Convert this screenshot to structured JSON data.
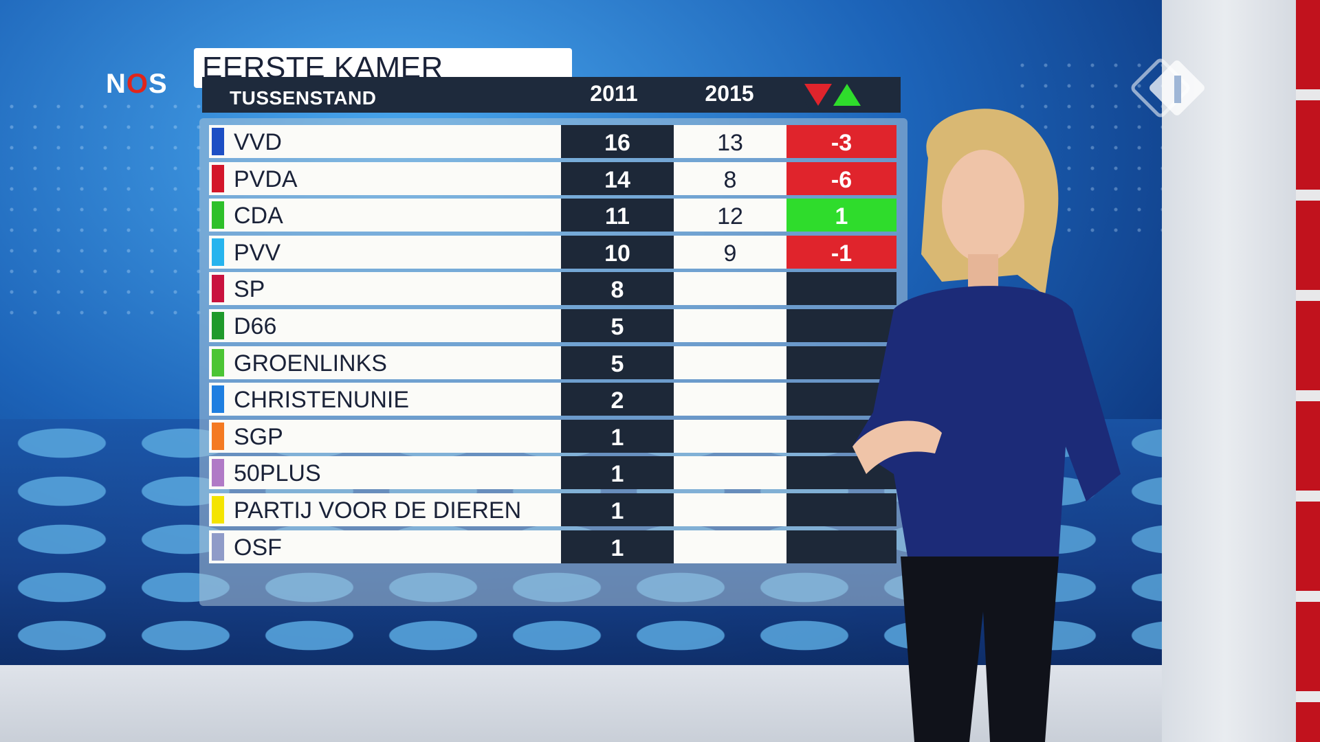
{
  "broadcaster": {
    "logo_text_before": "N",
    "logo_text_o": "O",
    "logo_text_after": "S"
  },
  "graphic": {
    "title": "EERSTE KAMER",
    "subtitle": "TUSSENSTAND",
    "columns": {
      "year_a": "2011",
      "year_b": "2015"
    },
    "change_colors": {
      "down": "#e0242c",
      "up": "#2fdc2c"
    }
  },
  "chart_data": {
    "type": "table",
    "title": "EERSTE KAMER",
    "subtitle": "TUSSENSTAND",
    "columns": [
      "2011",
      "2015"
    ],
    "rows": [
      {
        "party": "VVD",
        "color": "#1d4fc4",
        "seats_2011": "16",
        "seats_2015": "13",
        "change": "-3",
        "trend": "neg"
      },
      {
        "party": "PVDA",
        "color": "#d3162a",
        "seats_2011": "14",
        "seats_2015": "8",
        "change": "-6",
        "trend": "neg"
      },
      {
        "party": "CDA",
        "color": "#2ec02a",
        "seats_2011": "11",
        "seats_2015": "12",
        "change": "1",
        "trend": "pos"
      },
      {
        "party": "PVV",
        "color": "#27b4ee",
        "seats_2011": "10",
        "seats_2015": "9",
        "change": "-1",
        "trend": "neg"
      },
      {
        "party": "SP",
        "color": "#c9123e",
        "seats_2011": "8",
        "seats_2015": "",
        "change": "",
        "trend": "none"
      },
      {
        "party": "D66",
        "color": "#1f9a2b",
        "seats_2011": "5",
        "seats_2015": "",
        "change": "",
        "trend": "none"
      },
      {
        "party": "GROENLINKS",
        "color": "#4cc534",
        "seats_2011": "5",
        "seats_2015": "",
        "change": "",
        "trend": "none"
      },
      {
        "party": "CHRISTENUNIE",
        "color": "#1f7fe0",
        "seats_2011": "2",
        "seats_2015": "",
        "change": "",
        "trend": "none"
      },
      {
        "party": "SGP",
        "color": "#f47a22",
        "seats_2011": "1",
        "seats_2015": "",
        "change": "",
        "trend": "none"
      },
      {
        "party": "50PLUS",
        "color": "#b07ac6",
        "seats_2011": "1",
        "seats_2015": "",
        "change": "",
        "trend": "none"
      },
      {
        "party": "PARTIJ VOOR DE DIEREN",
        "color": "#f4e400",
        "seats_2011": "1",
        "seats_2015": "",
        "change": "",
        "trend": "none"
      },
      {
        "party": "OSF",
        "color": "#8f9bc8",
        "seats_2011": "1",
        "seats_2015": "",
        "change": "",
        "trend": "none"
      }
    ]
  }
}
